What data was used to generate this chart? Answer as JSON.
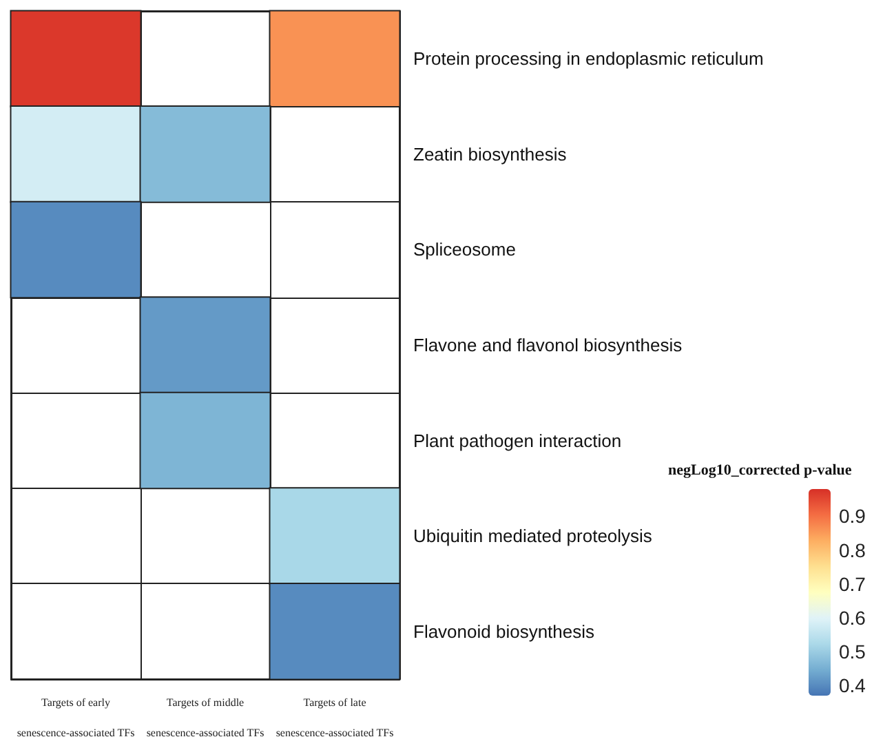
{
  "chart_data": {
    "type": "heatmap",
    "clabel": "negLog10_corrected p-value",
    "categories": [
      "Targets of early\nsenescence-associated TFs",
      "Targets of middle\nsenescence-associated TFs",
      "Targets of late\nsenescence-associated TFs"
    ],
    "y_categories": [
      "Protein processing in endoplasmic reticulum",
      "Zeatin biosynthesis",
      "Spliceosome",
      "Flavone and flavonol biosynthesis",
      "Plant pathogen interaction",
      "Ubiquitin mediated proteolysis",
      "Flavonoid biosynthesis"
    ],
    "cells": [
      [
        0.97,
        null,
        0.86
      ],
      [
        0.58,
        0.47,
        null
      ],
      [
        0.4,
        null,
        null
      ],
      [
        null,
        0.42,
        null
      ],
      [
        null,
        0.46,
        null
      ],
      [
        null,
        null,
        0.52
      ],
      [
        null,
        null,
        0.4
      ]
    ],
    "clim": [
      0.37,
      0.98
    ],
    "cticks": [
      0.4,
      0.5,
      0.6,
      0.7,
      0.8,
      0.9
    ]
  }
}
